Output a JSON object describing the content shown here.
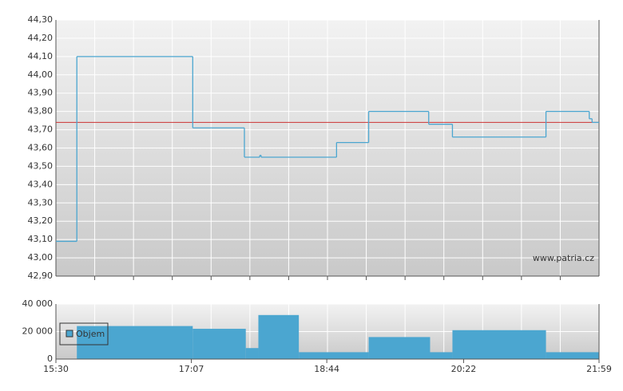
{
  "chart_data": [
    {
      "type": "line",
      "step": true,
      "grid": true,
      "color": "#4ba6d0",
      "x": [
        "15:30",
        "15:45",
        "17:08",
        "17:45",
        "17:56",
        "17:57",
        "18:51",
        "19:14",
        "19:57",
        "20:14",
        "21:21",
        "21:52",
        "21:54"
      ],
      "values": [
        43.09,
        44.1,
        43.71,
        43.55,
        43.56,
        43.55,
        43.63,
        43.8,
        43.73,
        43.66,
        43.8,
        43.76,
        43.74
      ],
      "reference_line": 43.74,
      "reference_color": "#cc3333",
      "xlim": [
        "15:30",
        "21:59"
      ],
      "ylim": [
        42.9,
        44.3
      ],
      "yticks": [
        {
          "value": 42.9,
          "label": "42,90"
        },
        {
          "value": 43.0,
          "label": "43,00"
        },
        {
          "value": 43.1,
          "label": "43,10"
        },
        {
          "value": 43.2,
          "label": "43,20"
        },
        {
          "value": 43.3,
          "label": "43,30"
        },
        {
          "value": 43.4,
          "label": "43,40"
        },
        {
          "value": 43.5,
          "label": "43,50"
        },
        {
          "value": 43.6,
          "label": "43,60"
        },
        {
          "value": 43.7,
          "label": "43,70"
        },
        {
          "value": 43.8,
          "label": "43,80"
        },
        {
          "value": 43.9,
          "label": "43,90"
        },
        {
          "value": 44.0,
          "label": "44,00"
        },
        {
          "value": 44.1,
          "label": "44,10"
        },
        {
          "value": 44.2,
          "label": "44,20"
        },
        {
          "value": 44.3,
          "label": "44,30"
        }
      ],
      "watermark": "www.patria.cz"
    },
    {
      "type": "bar",
      "grid": true,
      "x": [
        "15:45",
        "17:08",
        "17:46",
        "17:55",
        "18:24",
        "19:14",
        "19:58",
        "20:14",
        "21:21"
      ],
      "series": [
        {
          "name": "Objem",
          "color": "#4ba6d0",
          "values": [
            24000,
            22000,
            8000,
            32000,
            5000,
            16000,
            5000,
            21000,
            5000
          ]
        }
      ],
      "xlim": [
        "15:30",
        "21:59"
      ],
      "xticks": [
        "15:30",
        "17:07",
        "18:44",
        "20:22",
        "21:59"
      ],
      "ylim": [
        0,
        40000
      ],
      "yticks": [
        0,
        {
          "value": 20000,
          "label": "20 000"
        },
        {
          "value": 40000,
          "label": "40 000"
        }
      ],
      "legend": "upper left"
    }
  ]
}
